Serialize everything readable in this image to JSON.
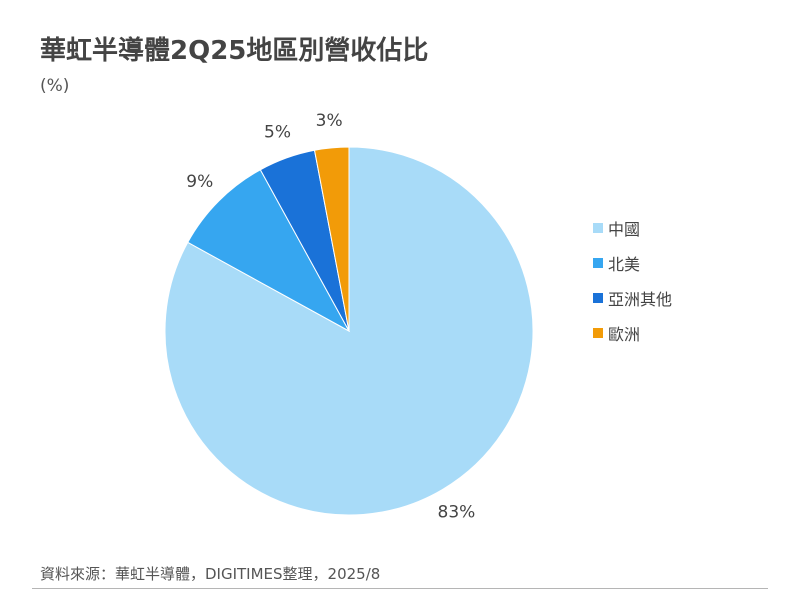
{
  "title": "華虹半導體2Q25地區別營收佔比",
  "unit": "(%)",
  "source": "資料來源：華虹半導體，DIGITIMES整理，2025/8",
  "chart_data": {
    "type": "pie",
    "title": "華虹半導體2Q25地區別營收佔比",
    "unit": "(%)",
    "start_angle_deg": 0,
    "direction": "clockwise",
    "legend_position": "right",
    "slices": [
      {
        "label": "中國",
        "value": 83,
        "display": "83%",
        "color": "#a8dbf8"
      },
      {
        "label": "北美",
        "value": 9,
        "display": "9%",
        "color": "#36a6f0"
      },
      {
        "label": "亞洲其他",
        "value": 5,
        "display": "5%",
        "color": "#1a72d8"
      },
      {
        "label": "歐洲",
        "value": 3,
        "display": "3%",
        "color": "#f29b08"
      }
    ]
  }
}
